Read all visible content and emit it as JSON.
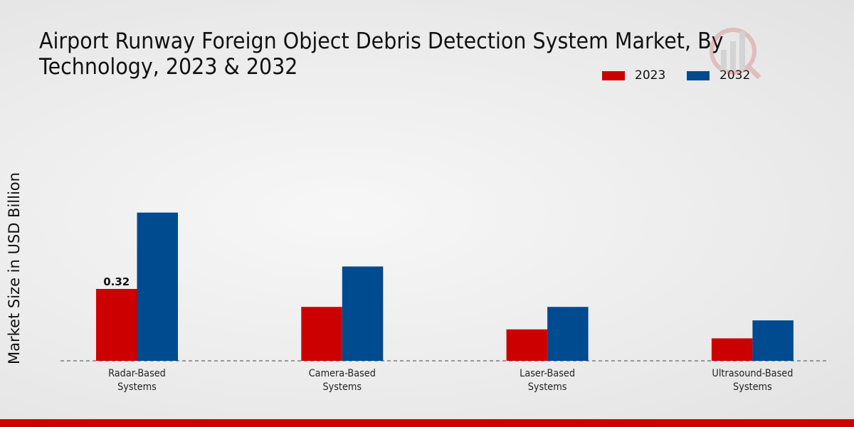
{
  "chart_data": {
    "type": "bar",
    "title": "Airport Runway Foreign Object Debris Detection System Market, By Technology, 2023 & 2032",
    "ylabel": "Market Size in USD Billion",
    "xlabel": "",
    "categories": [
      "Radar-Based Systems",
      "Camera-Based Systems",
      "Laser-Based Systems",
      "Ultrasound-Based Systems"
    ],
    "series": [
      {
        "name": "2023",
        "color": "#cc0000",
        "values": [
          0.32,
          0.24,
          0.14,
          0.1
        ]
      },
      {
        "name": "2032",
        "color": "#004a8f",
        "values": [
          0.66,
          0.42,
          0.24,
          0.18
        ]
      }
    ],
    "data_labels": [
      {
        "series": "2023",
        "category": "Radar-Based Systems",
        "text": "0.32"
      }
    ],
    "ylim": [
      0,
      0.8
    ],
    "grid": false,
    "legend": "top-right"
  }
}
